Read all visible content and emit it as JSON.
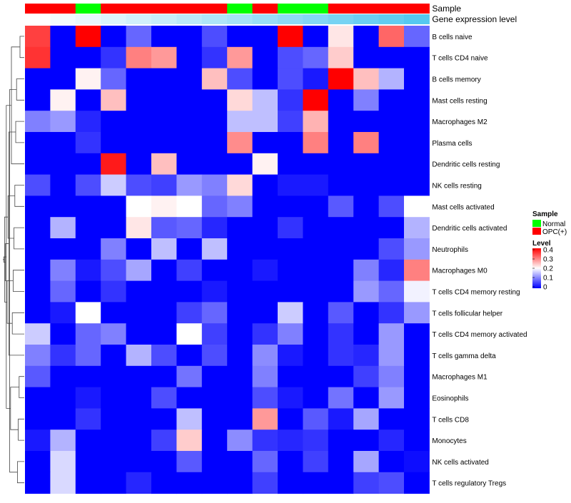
{
  "chart_data": {
    "type": "heatmap",
    "title": "",
    "annotation_tracks": [
      "Sample",
      "Gene expression level"
    ],
    "sample_groups": [
      "OPC(+)",
      "OPC(+)",
      "Normal",
      "OPC(+)",
      "OPC(+)",
      "OPC(+)",
      "OPC(+)",
      "OPC(+)",
      "Normal",
      "OPC(+)",
      "Normal",
      "Normal",
      "OPC(+)",
      "OPC(+)",
      "OPC(+)",
      "OPC(+)"
    ],
    "expression_levels": [
      0,
      0.07,
      0.13,
      0.2,
      0.27,
      0.33,
      0.4,
      0.47,
      0.53,
      0.6,
      0.67,
      0.73,
      0.8,
      0.87,
      0.93,
      1.0
    ],
    "rows": [
      "B cells naive",
      "T cells CD4 naive",
      "B cells memory",
      "Mast cells resting",
      "Macrophages M2",
      "Plasma cells",
      "Dendritic cells resting",
      "NK cells resting",
      "Mast cells activated",
      "Dendritic cells activated",
      "Neutrophils",
      "Macrophages M0",
      "T cells CD4 memory resting",
      "T cells follicular helper",
      "T cells CD4 memory activated",
      "T cells gamma delta",
      "Macrophages M1",
      "Eosinophils",
      "T cells CD8",
      "Monocytes",
      "NK cells activated",
      "T cells regulatory  Tregs"
    ],
    "values": [
      [
        0.35,
        0,
        0.4,
        0,
        0.08,
        0,
        0,
        0.06,
        0,
        0,
        0.4,
        0,
        0.22,
        0,
        0.32,
        0.08
      ],
      [
        0.36,
        0,
        0,
        0.04,
        0.3,
        0.28,
        0,
        0.04,
        0.28,
        0,
        0.06,
        0.08,
        0.24,
        0,
        0,
        0
      ],
      [
        0,
        0,
        0.21,
        0.08,
        0,
        0,
        0,
        0.25,
        0.06,
        0,
        0.06,
        0.02,
        0.4,
        0.25,
        0.14,
        0
      ],
      [
        0,
        0.21,
        0,
        0.25,
        0,
        0,
        0,
        0,
        0.23,
        0.15,
        0.04,
        0.4,
        0,
        0.1,
        0,
        0
      ],
      [
        0.1,
        0.12,
        0.03,
        0,
        0,
        0,
        0,
        0,
        0.15,
        0.15,
        0.05,
        0.26,
        0,
        0,
        0,
        0
      ],
      [
        0,
        0,
        0.04,
        0,
        0,
        0,
        0,
        0,
        0.29,
        0,
        0,
        0.3,
        0,
        0.3,
        0,
        0
      ],
      [
        0,
        0,
        0,
        0.38,
        0,
        0.25,
        0,
        0,
        0,
        0.21,
        0,
        0,
        0,
        0,
        0,
        0
      ],
      [
        0.06,
        0,
        0.06,
        0.16,
        0.06,
        0.05,
        0.12,
        0.1,
        0.23,
        0,
        0.02,
        0.02,
        0,
        0,
        0,
        0
      ],
      [
        0,
        0,
        0,
        0,
        0.2,
        0.21,
        0.2,
        0.08,
        0.1,
        0,
        0,
        0,
        0.07,
        0,
        0.06,
        0.2
      ],
      [
        0,
        0.14,
        0,
        0,
        0.22,
        0.07,
        0.08,
        0.03,
        0,
        0,
        0.04,
        0,
        0,
        0,
        0,
        0.14
      ],
      [
        0,
        0,
        0,
        0.1,
        0,
        0.15,
        0,
        0.15,
        0,
        0,
        0,
        0,
        0,
        0,
        0.06,
        0.12
      ],
      [
        0,
        0.1,
        0.02,
        0.06,
        0.13,
        0,
        0.05,
        0,
        0,
        0.02,
        0,
        0,
        0,
        0.1,
        0.03,
        0.3
      ],
      [
        0,
        0.08,
        0,
        0.04,
        0,
        0,
        0,
        0.02,
        0,
        0,
        0,
        0,
        0,
        0.12,
        0.08,
        0.19
      ],
      [
        0,
        0.02,
        0.2,
        0,
        0,
        0,
        0.05,
        0.08,
        0,
        0,
        0.16,
        0,
        0.07,
        0,
        0.04,
        0.12
      ],
      [
        0.16,
        0,
        0.08,
        0.1,
        0,
        0,
        0.2,
        0.05,
        0,
        0.04,
        0.1,
        0,
        0.04,
        0,
        0.12,
        0
      ],
      [
        0.1,
        0.04,
        0.08,
        0,
        0.14,
        0.06,
        0,
        0.06,
        0,
        0.11,
        0.02,
        0,
        0.04,
        0.03,
        0.12,
        0
      ],
      [
        0.07,
        0,
        0,
        0,
        0,
        0,
        0.09,
        0,
        0,
        0.1,
        0,
        0,
        0,
        0.05,
        0.1,
        0
      ],
      [
        0,
        0,
        0.02,
        0,
        0,
        0.06,
        0,
        0,
        0,
        0.06,
        0.02,
        0,
        0.09,
        0,
        0.12,
        0
      ],
      [
        0,
        0,
        0.04,
        0,
        0,
        0,
        0.15,
        0,
        0,
        0.28,
        0,
        0.07,
        0.02,
        0.13,
        0,
        0
      ],
      [
        0.02,
        0.14,
        0,
        0,
        0,
        0.05,
        0.24,
        0,
        0.11,
        0.04,
        0.03,
        0.04,
        0,
        0,
        0.03,
        0
      ],
      [
        0,
        0.17,
        0,
        0,
        0,
        0,
        0.07,
        0,
        0,
        0.08,
        0,
        0.05,
        0,
        0.13,
        0,
        0.01
      ],
      [
        0,
        0.17,
        0,
        0,
        0.03,
        0,
        0,
        0,
        0,
        0.05,
        0,
        0,
        0,
        0.05,
        0.06,
        0
      ]
    ],
    "dendrogram": [
      [
        0,
        1
      ],
      [
        16,
        17
      ],
      [
        18,
        19
      ],
      [
        20,
        21
      ],
      [
        2,
        3
      ],
      [
        4,
        5
      ],
      [
        7,
        8
      ],
      [
        9,
        10
      ],
      [
        11,
        12
      ],
      [
        13,
        14
      ],
      [
        22,
        6
      ],
      [
        23,
        24
      ],
      [
        25,
        26
      ],
      [
        15,
        27
      ],
      [
        28,
        29
      ],
      [
        30,
        31
      ],
      [
        32,
        33
      ],
      [
        34,
        35
      ],
      [
        36,
        37
      ],
      [
        38,
        39
      ],
      [
        40,
        41
      ]
    ],
    "legend": {
      "sample_title": "Sample",
      "groups": [
        {
          "name": "Normal",
          "color": "#00ff00"
        },
        {
          "name": "OPC(+)",
          "color": "#ff0000"
        }
      ],
      "level_title": "Level",
      "level_ticks": [
        "0.4",
        "0.3",
        "0.2",
        "0.1",
        "0"
      ],
      "level_range": [
        0,
        0.4
      ],
      "placement": "right"
    },
    "colors": {
      "low": "#0000ff",
      "mid": "#ffffff",
      "high": "#ff0000",
      "expr_low": "#ffffff",
      "expr_high": "#55c8f0",
      "normal": "#00ff00",
      "opc": "#ff0000"
    }
  }
}
